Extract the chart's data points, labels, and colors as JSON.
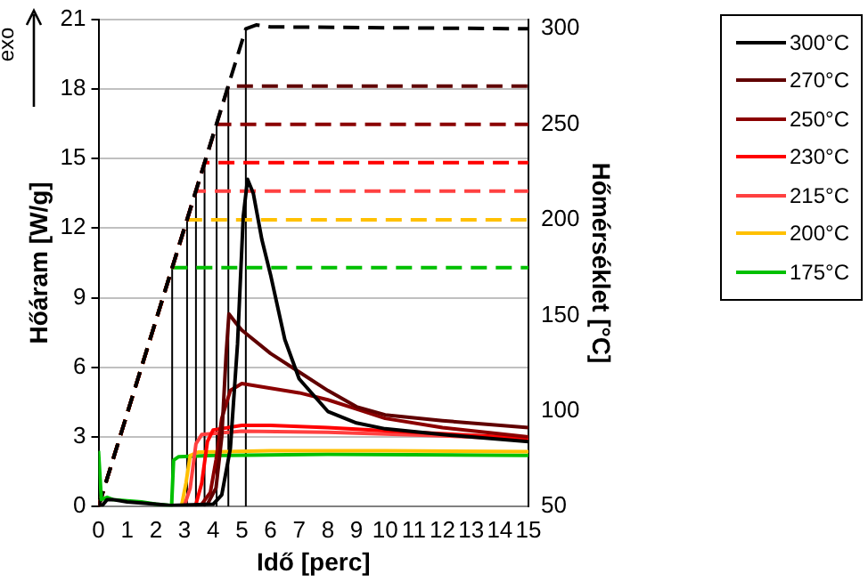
{
  "chart_data": {
    "type": "line",
    "xlabel": "Idő [perc]",
    "ylabel": "Hőáram [W/g]",
    "y2label": "Hőmérséklet [°C]",
    "annotations": [
      "exo"
    ],
    "xlim": [
      0,
      15
    ],
    "xticks": [
      0,
      1,
      2,
      3,
      4,
      5,
      6,
      7,
      8,
      9,
      10,
      11,
      12,
      13,
      14,
      15
    ],
    "ylim": [
      0,
      21
    ],
    "yticks": [
      0,
      3,
      6,
      9,
      12,
      15,
      18,
      21
    ],
    "y2lim": [
      50,
      305
    ],
    "y2ticks": [
      50,
      100,
      150,
      200,
      250,
      300
    ],
    "grid": "y",
    "legend": "right",
    "marker": "none",
    "series": [
      {
        "name": "300°C",
        "color": "#000000",
        "x": [
          0,
          0.1,
          0.3,
          0.5,
          1,
          1.5,
          2,
          2.5,
          4.0,
          4.3,
          4.6,
          4.85,
          5.05,
          5.2,
          5.4,
          5.7,
          6,
          6.5,
          7,
          8,
          9,
          10,
          12,
          15
        ],
        "values": [
          0,
          0,
          0.3,
          0.3,
          0.2,
          0.15,
          0.1,
          0.05,
          0.1,
          0.5,
          2.5,
          7,
          12.5,
          14.1,
          13.5,
          11.5,
          10.0,
          7.2,
          5.5,
          4.1,
          3.6,
          3.35,
          3.1,
          2.8
        ]
      },
      {
        "name": "270°C",
        "color": "#600000",
        "x": [
          3.8,
          4.1,
          4.3,
          4.45,
          4.55,
          4.8,
          5,
          6,
          7,
          8,
          9,
          10,
          12,
          15
        ],
        "values": [
          0.1,
          0.8,
          3.0,
          6.5,
          8.3,
          7.9,
          7.6,
          6.6,
          5.8,
          5.0,
          4.3,
          3.95,
          3.7,
          3.4
        ]
      },
      {
        "name": "250°C",
        "color": "#8b0000",
        "x": [
          3.6,
          3.9,
          4.1,
          4.3,
          4.6,
          5,
          6,
          7,
          8,
          9,
          10,
          12,
          15
        ],
        "values": [
          0.1,
          0.6,
          2.0,
          3.8,
          5.0,
          5.3,
          5.1,
          4.9,
          4.6,
          4.2,
          3.8,
          3.4,
          3.0
        ]
      },
      {
        "name": "230°C",
        "color": "#ff0000",
        "x": [
          3.4,
          3.6,
          3.8,
          4.0,
          5,
          6,
          8,
          11,
          15
        ],
        "values": [
          0.1,
          1.0,
          2.8,
          3.3,
          3.5,
          3.5,
          3.4,
          3.2,
          2.95
        ]
      },
      {
        "name": "215°C",
        "color": "#ff4040",
        "x": [
          3.0,
          3.2,
          3.4,
          3.6,
          5,
          8,
          12,
          15
        ],
        "values": [
          0.05,
          0.8,
          2.7,
          3.1,
          3.25,
          3.2,
          3.05,
          2.9
        ]
      },
      {
        "name": "200°C",
        "color": "#ffc000",
        "x": [
          2.9,
          3.05,
          3.2,
          3.5,
          6,
          10,
          15
        ],
        "values": [
          0.05,
          1.0,
          2.2,
          2.35,
          2.4,
          2.4,
          2.37
        ]
      },
      {
        "name": "175°C",
        "color": "#00c000",
        "x": [
          0,
          0.1,
          0.3,
          0.5,
          1,
          1.5,
          2,
          2.5,
          2.55,
          2.62,
          2.8,
          4,
          8,
          15
        ],
        "values": [
          2.4,
          0.3,
          0.4,
          0.3,
          0.25,
          0.2,
          0.1,
          0.05,
          0.05,
          2.0,
          2.15,
          2.2,
          2.25,
          2.2
        ]
      },
      {
        "color": "#000000",
        "axis": "y2",
        "line_style": "dashed",
        "x": [
          0,
          5.14,
          5.5,
          6,
          15
        ],
        "values": [
          50,
          300,
          302,
          301,
          300
        ]
      },
      {
        "color": "#600000",
        "axis": "y2",
        "line_style": "dashed",
        "x": [
          0,
          4.53,
          15
        ],
        "values": [
          50,
          270,
          270
        ]
      },
      {
        "color": "#8b0000",
        "axis": "y2",
        "line_style": "dashed",
        "x": [
          0,
          4.12,
          15
        ],
        "values": [
          50,
          250,
          250
        ]
      },
      {
        "color": "#ff0000",
        "axis": "y2",
        "line_style": "dashed",
        "x": [
          0,
          3.7,
          15
        ],
        "values": [
          50,
          230,
          230
        ]
      },
      {
        "color": "#ff4040",
        "axis": "y2",
        "line_style": "dashed",
        "x": [
          0,
          3.4,
          15
        ],
        "values": [
          50,
          215,
          215
        ]
      },
      {
        "color": "#ffc000",
        "axis": "y2",
        "line_style": "dashed",
        "x": [
          0,
          3.09,
          15
        ],
        "values": [
          50,
          200,
          200
        ]
      },
      {
        "color": "#00c000",
        "axis": "y2",
        "line_style": "dashed",
        "x": [
          0,
          2.57,
          15
        ],
        "values": [
          50,
          175,
          175
        ]
      },
      {
        "color": "#000000",
        "axis": "y2",
        "x": [
          5.14,
          5.14
        ],
        "values": [
          50,
          300
        ]
      },
      {
        "color": "#000000",
        "axis": "y2",
        "x": [
          4.53,
          4.53
        ],
        "values": [
          50,
          270
        ]
      },
      {
        "color": "#000000",
        "axis": "y2",
        "x": [
          4.12,
          4.12
        ],
        "values": [
          50,
          250
        ]
      },
      {
        "color": "#000000",
        "axis": "y2",
        "x": [
          3.7,
          3.7
        ],
        "values": [
          50,
          230
        ]
      },
      {
        "color": "#000000",
        "axis": "y2",
        "x": [
          3.4,
          3.4
        ],
        "values": [
          50,
          215
        ]
      },
      {
        "color": "#000000",
        "axis": "y2",
        "x": [
          3.09,
          3.09
        ],
        "values": [
          50,
          200
        ]
      },
      {
        "color": "#000000",
        "axis": "y2",
        "x": [
          2.57,
          2.57
        ],
        "values": [
          50,
          175
        ]
      }
    ]
  }
}
